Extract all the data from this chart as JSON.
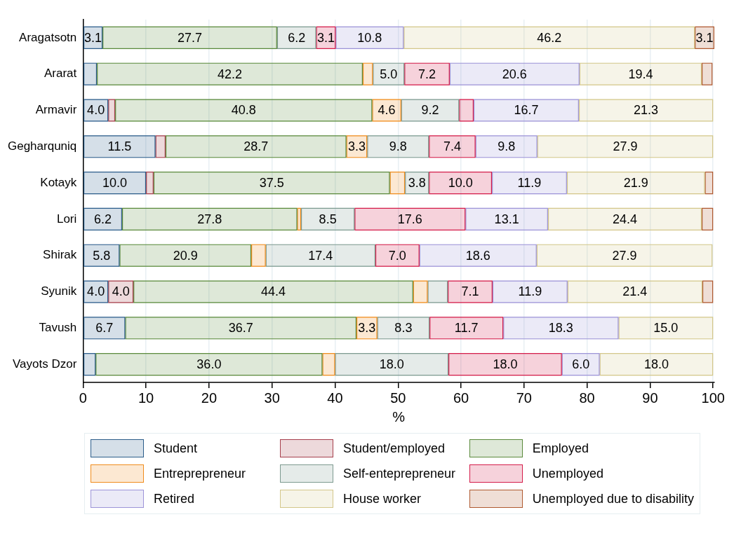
{
  "chart_data": {
    "type": "bar",
    "orientation": "horizontal",
    "stacked": true,
    "xlabel": "%",
    "legend": "bottom",
    "grid": "x",
    "xlim": [
      0,
      100.2
    ],
    "xticks": [
      0,
      10,
      20,
      30,
      40,
      50,
      60,
      70,
      80,
      90,
      100
    ],
    "categories": [
      "Aragatsotn",
      "Ararat",
      "Armavir",
      "Gegharquniq",
      "Kotayk",
      "Lori",
      "Shirak",
      "Syunik",
      "Tavush",
      "Vayots Dzor"
    ],
    "series": [
      {
        "name": "Student",
        "color": "#2c5d8a",
        "values": [
          3.1,
          2.2,
          4.0,
          11.5,
          10.0,
          6.2,
          5.8,
          4.0,
          6.7,
          2.0
        ],
        "value_labels": [
          "3.1",
          null,
          "4.0",
          "11.5",
          "10.0",
          "6.2",
          "5.8",
          "4.0",
          "6.7",
          null
        ]
      },
      {
        "name": "Student/employed",
        "color": "#a63f4c",
        "values": [
          0,
          0,
          1.1,
          1.6,
          1.2,
          0,
          0,
          4.0,
          0,
          0
        ],
        "value_labels": [
          null,
          null,
          null,
          null,
          null,
          null,
          null,
          "4.0",
          null,
          null
        ]
      },
      {
        "name": "Employed",
        "color": "#5b8a3c",
        "values": [
          27.7,
          42.2,
          40.8,
          28.7,
          37.5,
          27.8,
          20.9,
          44.4,
          36.7,
          36.0
        ],
        "value_labels": [
          "27.7",
          "42.2",
          "40.8",
          "28.7",
          "37.5",
          "27.8",
          "20.9",
          "44.4",
          "36.7",
          "36.0"
        ]
      },
      {
        "name": "Entreprepreneur",
        "color": "#f08c1c",
        "values": [
          0,
          1.6,
          4.6,
          3.3,
          2.4,
          0.6,
          2.3,
          2.3,
          3.3,
          2.0
        ],
        "value_labels": [
          null,
          null,
          "4.6",
          "3.3",
          null,
          null,
          null,
          null,
          "3.3",
          null
        ]
      },
      {
        "name": "Self-enteprepreneur",
        "color": "#7d9a90",
        "values": [
          6.2,
          5.0,
          9.2,
          9.8,
          3.8,
          8.5,
          17.4,
          3.2,
          8.3,
          18.0
        ],
        "value_labels": [
          "6.2",
          "5.0",
          "9.2",
          "9.8",
          "3.8",
          "8.5",
          "17.4",
          null,
          "8.3",
          "18.0"
        ]
      },
      {
        "name": "Unemployed",
        "color": "#d41c4a",
        "values": [
          3.1,
          7.2,
          2.3,
          7.4,
          10.0,
          17.6,
          7.0,
          7.1,
          11.7,
          18.0
        ],
        "value_labels": [
          "3.1",
          "7.2",
          null,
          "7.4",
          "10.0",
          "17.6",
          "7.0",
          "7.1",
          "11.7",
          "18.0"
        ]
      },
      {
        "name": "Retired",
        "color": "#9d94d8",
        "values": [
          10.8,
          20.6,
          16.7,
          9.8,
          11.9,
          13.1,
          18.6,
          11.9,
          18.3,
          6.0
        ],
        "value_labels": [
          "10.8",
          "20.6",
          "16.7",
          "9.8",
          "11.9",
          "13.1",
          "18.6",
          "11.9",
          "18.3",
          "6.0"
        ]
      },
      {
        "name": "House worker",
        "color": "#d4c78a",
        "values": [
          46.2,
          19.4,
          21.3,
          27.9,
          21.9,
          24.4,
          27.9,
          21.4,
          15.0,
          18.0
        ],
        "value_labels": [
          "46.2",
          "19.4",
          "21.3",
          "27.9",
          "21.9",
          "24.4",
          "27.9",
          "21.4",
          "15.0",
          "18.0"
        ]
      },
      {
        "name": "Unemployed due to disability",
        "color": "#b05a30",
        "values": [
          3.1,
          1.7,
          0,
          0,
          1.3,
          1.8,
          0,
          1.7,
          0,
          0
        ],
        "value_labels": [
          "3.1",
          null,
          null,
          null,
          null,
          null,
          null,
          null,
          null,
          null
        ]
      }
    ]
  }
}
